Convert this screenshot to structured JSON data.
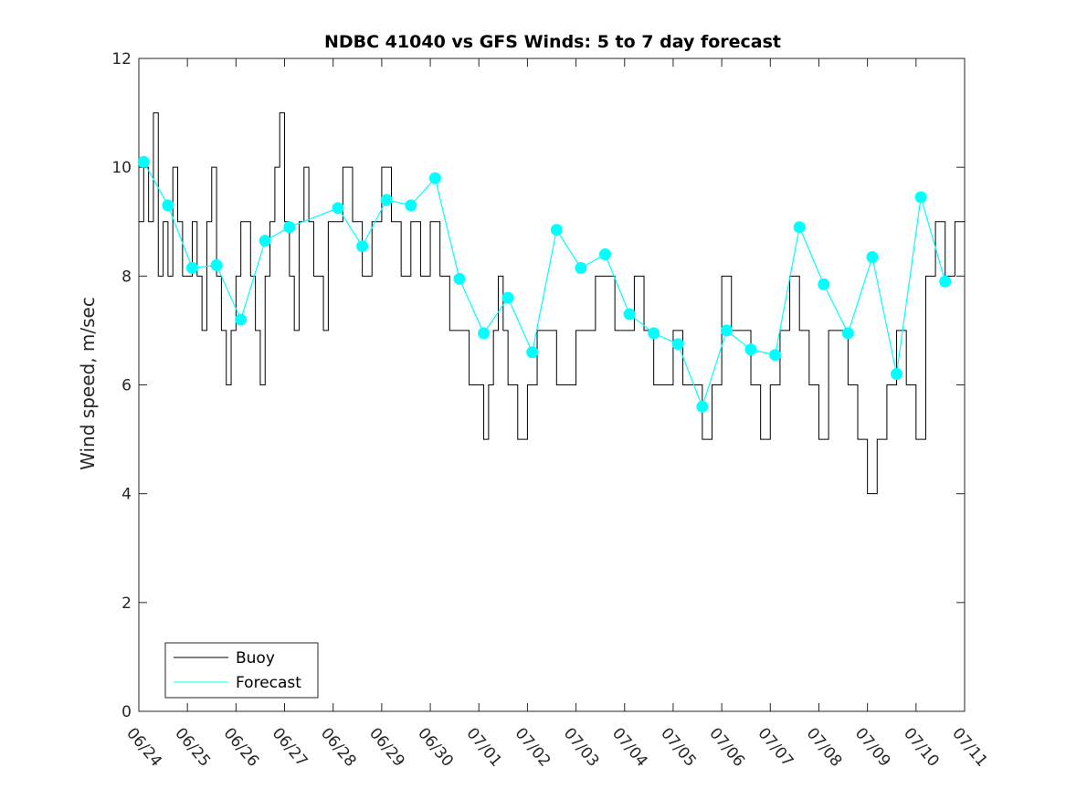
{
  "chart_data": {
    "type": "line",
    "title": "NDBC 41040 vs GFS Winds: 5 to 7 day forecast",
    "xlabel": "",
    "ylabel": "Wind speed, m/sec",
    "x_ticks": [
      "06/24",
      "06/25",
      "06/26",
      "06/27",
      "06/28",
      "06/29",
      "06/30",
      "07/01",
      "07/02",
      "07/03",
      "07/04",
      "07/05",
      "07/06",
      "07/07",
      "07/08",
      "07/09",
      "07/10",
      "07/11"
    ],
    "xlim": [
      "06/24",
      "07/11"
    ],
    "ylim": [
      0,
      12
    ],
    "y_ticks": [
      0,
      2,
      4,
      6,
      8,
      10,
      12
    ],
    "legend": {
      "placement": "bottom-left",
      "entries": [
        "Buoy",
        "Forecast"
      ]
    },
    "colors": {
      "buoy": "#000000",
      "forecast": "#00ffff",
      "forecast_markers": "#00ffff"
    },
    "series": [
      {
        "name": "Buoy",
        "x_days": [
          0,
          0.1,
          0.2,
          0.3,
          0.4,
          0.5,
          0.6,
          0.7,
          0.8,
          0.9,
          1.0,
          1.1,
          1.2,
          1.3,
          1.4,
          1.5,
          1.6,
          1.7,
          1.8,
          1.9,
          2.0,
          2.1,
          2.2,
          2.3,
          2.4,
          2.5,
          2.6,
          2.7,
          2.8,
          2.9,
          3.0,
          3.1,
          3.2,
          3.3,
          3.4,
          3.5,
          3.6,
          3.7,
          3.8,
          3.9,
          4.0,
          4.2,
          4.4,
          4.6,
          4.8,
          5.0,
          5.2,
          5.4,
          5.6,
          5.8,
          6.0,
          6.2,
          6.4,
          6.6,
          6.8,
          7.0,
          7.1,
          7.2,
          7.3,
          7.4,
          7.5,
          7.6,
          7.8,
          8.0,
          8.2,
          8.4,
          8.6,
          8.8,
          9.0,
          9.2,
          9.4,
          9.6,
          9.8,
          10.0,
          10.2,
          10.4,
          10.6,
          10.8,
          11.0,
          11.2,
          11.4,
          11.6,
          11.8,
          12.0,
          12.2,
          12.4,
          12.6,
          12.8,
          13.0,
          13.2,
          13.4,
          13.6,
          13.8,
          14.0,
          14.2,
          14.4,
          14.6,
          14.8,
          15.0,
          15.2,
          15.4,
          15.6,
          15.8,
          16.0,
          16.2,
          16.4,
          16.6,
          16.8,
          17.0
        ],
        "values": [
          9,
          10,
          9,
          11,
          8,
          9,
          8,
          10,
          9,
          8,
          8,
          9,
          8,
          7,
          9,
          10,
          8,
          7,
          6,
          7,
          8,
          9,
          9,
          8,
          7,
          6,
          8,
          9,
          10,
          11,
          9,
          8,
          7,
          9,
          10,
          9,
          8,
          8,
          7,
          9,
          9,
          10,
          9,
          8,
          9,
          10,
          9,
          8,
          9,
          8,
          9,
          8,
          7,
          7,
          6,
          6,
          5,
          6,
          7,
          8,
          7,
          6,
          5,
          6,
          7,
          7,
          6,
          6,
          7,
          7,
          8,
          8,
          7,
          7,
          8,
          7,
          6,
          6,
          7,
          6,
          6,
          5,
          6,
          8,
          7,
          7,
          6,
          5,
          6,
          7,
          8,
          7,
          6,
          5,
          7,
          7,
          6,
          5,
          4,
          5,
          6,
          7,
          6,
          5,
          8,
          9,
          8,
          9,
          9
        ]
      },
      {
        "name": "Forecast",
        "x_days": [
          0.1,
          0.6,
          1.1,
          1.6,
          2.1,
          2.6,
          3.1,
          4.1,
          4.6,
          5.1,
          5.6,
          6.1,
          6.6,
          7.1,
          7.6,
          8.1,
          8.6,
          9.1,
          9.6,
          10.1,
          10.6,
          11.1,
          11.6,
          12.1,
          12.6,
          13.1,
          13.6,
          14.1,
          14.6,
          15.1,
          15.6,
          16.1,
          16.6
        ],
        "values": [
          10.1,
          9.3,
          8.15,
          8.2,
          7.2,
          8.65,
          8.9,
          9.25,
          8.55,
          9.4,
          9.3,
          9.8,
          7.95,
          6.95,
          7.6,
          6.6,
          8.85,
          8.15,
          8.4,
          7.3,
          6.95,
          6.75,
          5.6,
          7.0,
          6.65,
          6.55,
          8.9,
          7.85,
          6.95,
          8.35,
          6.2,
          9.45,
          7.9
        ]
      }
    ]
  }
}
